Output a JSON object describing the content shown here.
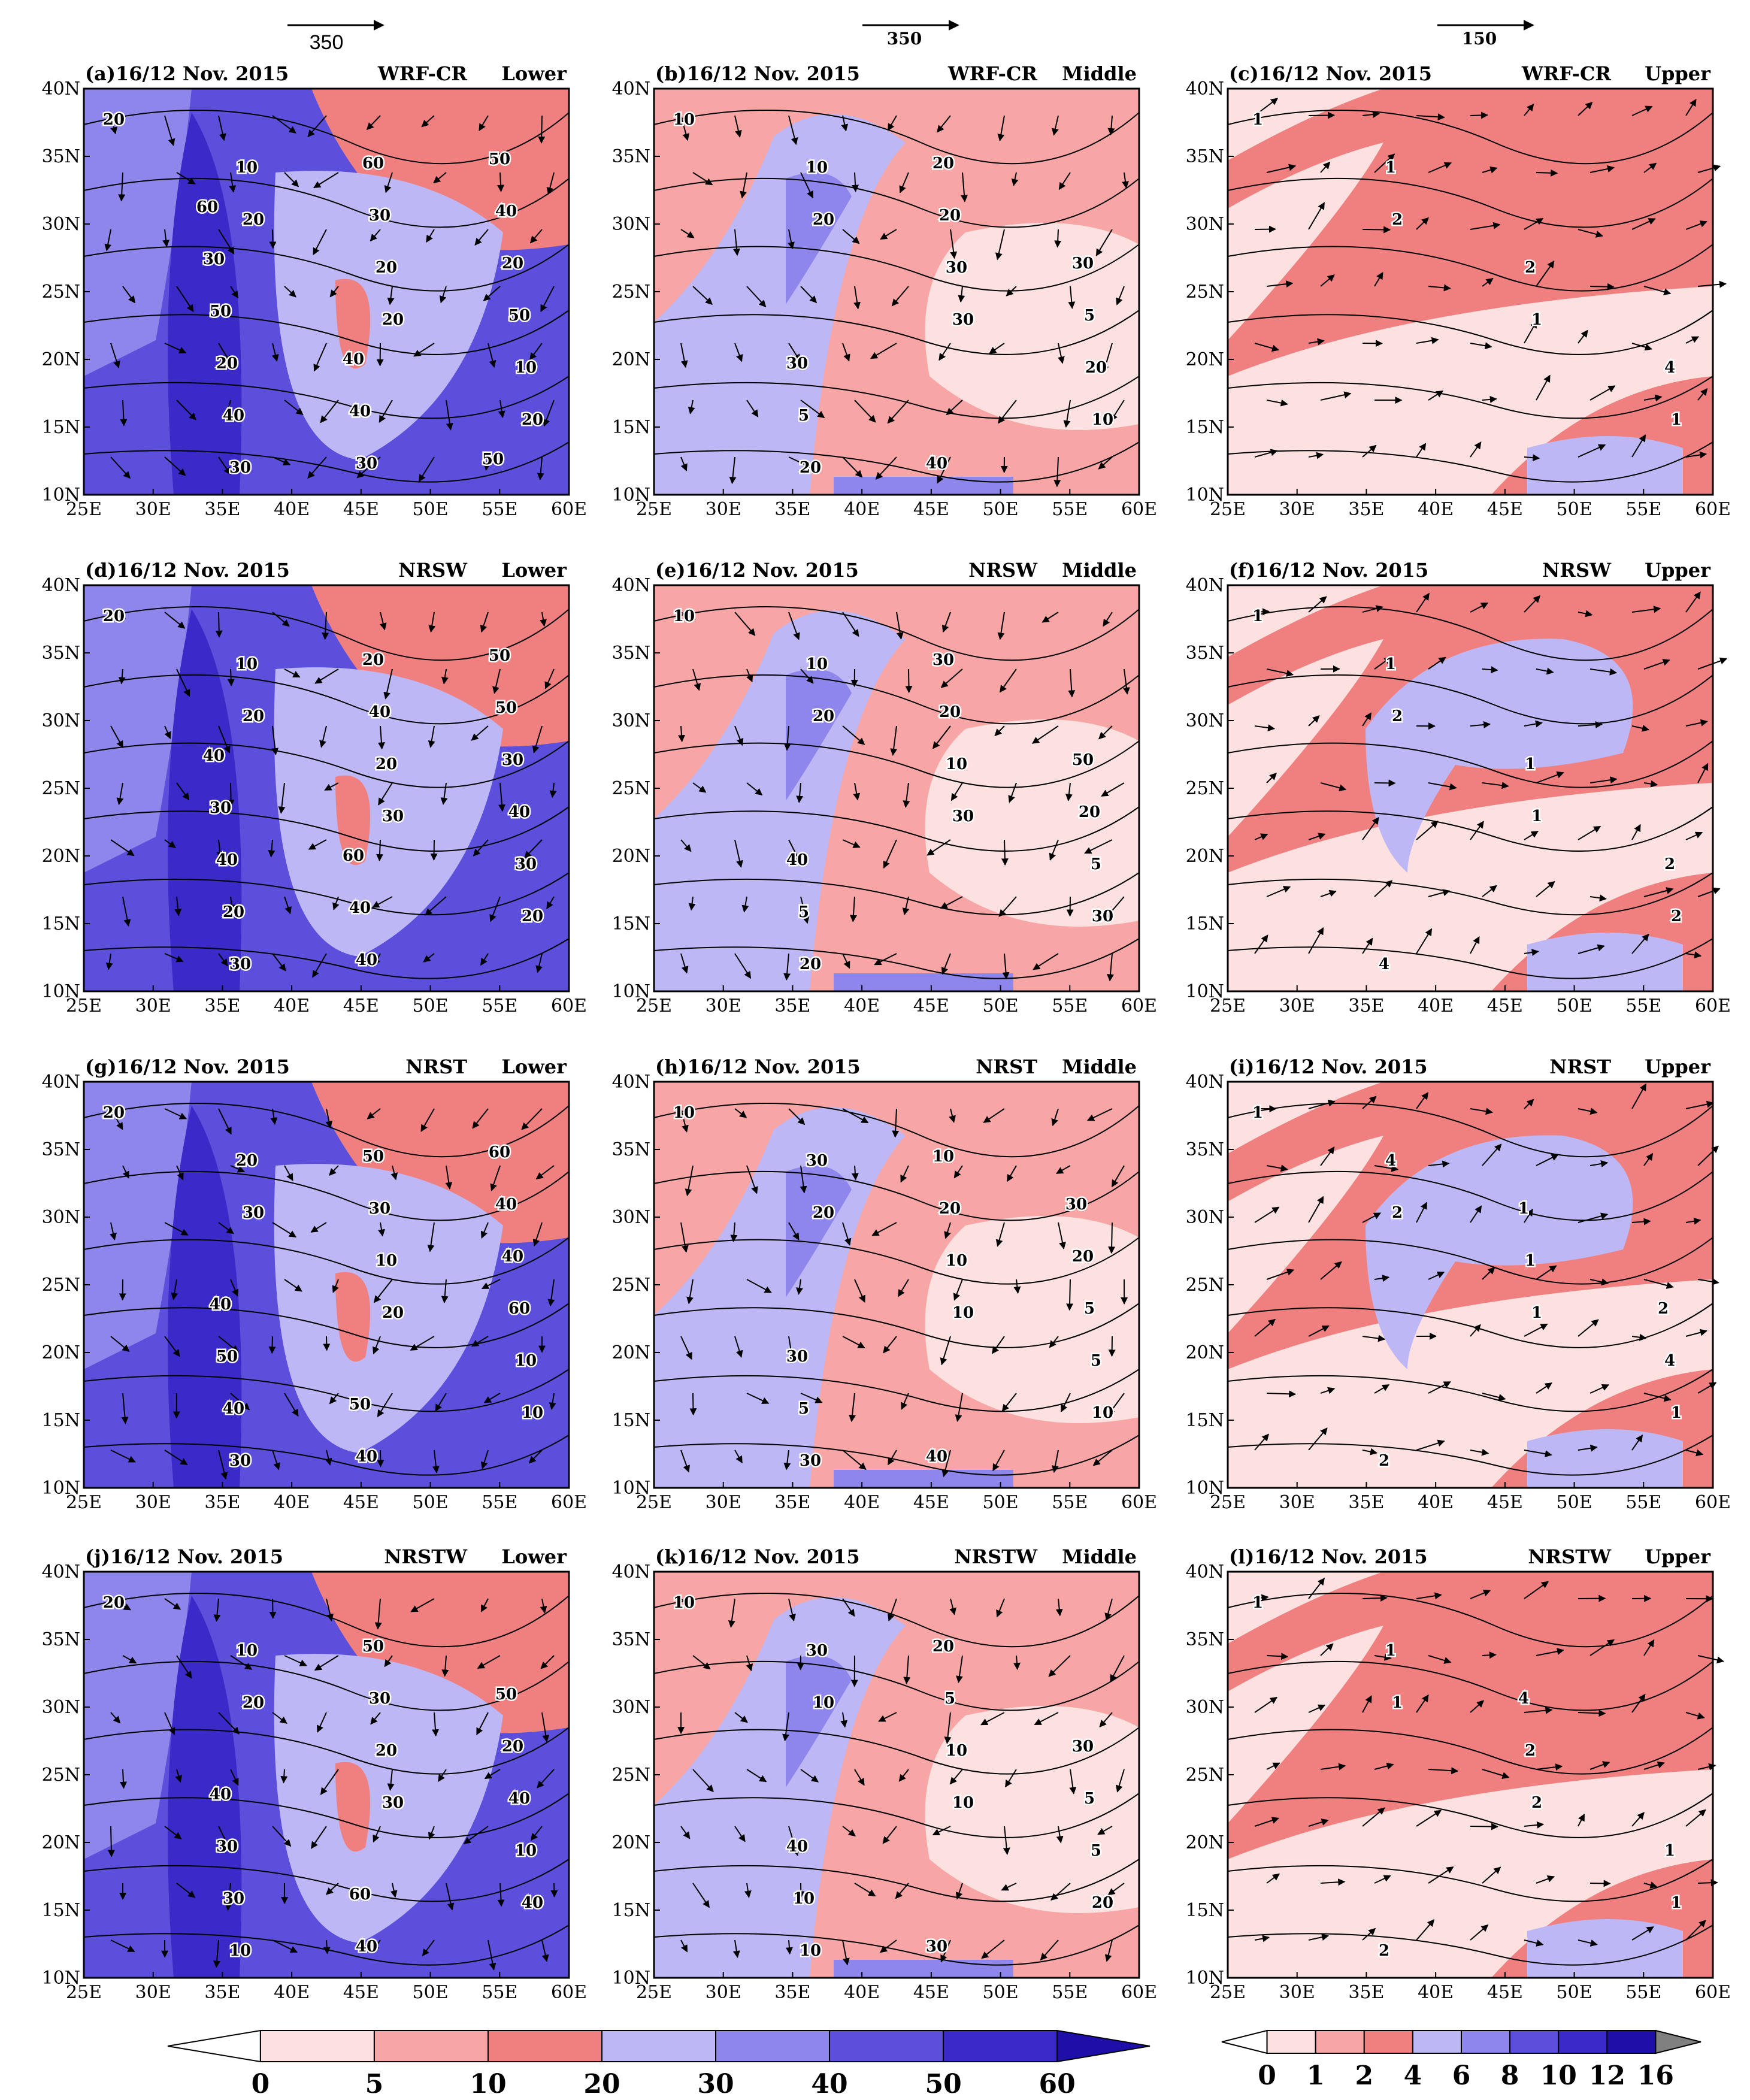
{
  "reference_vectors": [
    {
      "value": "350"
    },
    {
      "value": "350"
    },
    {
      "value": "150"
    }
  ],
  "x_tick_labels": [
    "25E",
    "30E",
    "35E",
    "40E",
    "45E",
    "50E",
    "55E",
    "60E"
  ],
  "y_tick_labels": [
    "40N",
    "35N",
    "30N",
    "25N",
    "20N",
    "15N",
    "10N"
  ],
  "panels": [
    {
      "id": "a",
      "title": "(a)16/12 Nov. 2015",
      "model": "WRF-CR",
      "level": "Lower",
      "scale": "low",
      "contour_labels": [
        "20",
        "20",
        "20",
        "20",
        "10",
        "20",
        "10",
        "30",
        "30",
        "50",
        "40",
        "60",
        "20",
        "20",
        "30",
        "40",
        "50",
        "40",
        "50",
        "30",
        "40",
        "50",
        "60"
      ]
    },
    {
      "id": "b",
      "title": "(b)16/12 Nov. 2015",
      "model": "WRF-CR",
      "level": "Middle",
      "scale": "low",
      "contour_labels": [
        "10",
        "20",
        "30",
        "10",
        "10",
        "30",
        "20",
        "20",
        "20",
        "5",
        "5",
        "20",
        "30",
        "30",
        "40"
      ]
    },
    {
      "id": "c",
      "title": "(c)16/12 Nov. 2015",
      "model": "WRF-CR",
      "level": "Upper",
      "scale": "up",
      "contour_labels": [
        "1",
        "2",
        "1",
        "1",
        "1",
        "2",
        "4"
      ]
    },
    {
      "id": "d",
      "title": "(d)16/12 Nov. 2015",
      "model": "NRSW",
      "level": "Lower",
      "scale": "low",
      "contour_labels": [
        "20",
        "20",
        "30",
        "20",
        "10",
        "20",
        "30",
        "30",
        "40",
        "40",
        "20",
        "20",
        "30",
        "40",
        "40",
        "50",
        "30",
        "40",
        "50",
        "40",
        "60"
      ]
    },
    {
      "id": "e",
      "title": "(e)16/12 Nov. 2015",
      "model": "NRSW",
      "level": "Middle",
      "scale": "low",
      "contour_labels": [
        "10",
        "20",
        "30",
        "30",
        "10",
        "10",
        "5",
        "20",
        "20",
        "20",
        "5",
        "30",
        "50",
        "40"
      ]
    },
    {
      "id": "f",
      "title": "(f)16/12 Nov. 2015",
      "model": "NRSW",
      "level": "Upper",
      "scale": "up",
      "contour_labels": [
        "1",
        "2",
        "1",
        "2",
        "1",
        "1",
        "2",
        "4"
      ]
    },
    {
      "id": "g",
      "title": "(g)16/12 Nov. 2015",
      "model": "NRST",
      "level": "Lower",
      "scale": "low",
      "contour_labels": [
        "20",
        "30",
        "20",
        "10",
        "20",
        "10",
        "10",
        "30",
        "30",
        "60",
        "40",
        "50",
        "40",
        "50",
        "40",
        "40",
        "40",
        "50",
        "60"
      ]
    },
    {
      "id": "h",
      "title": "(h)16/12 Nov. 2015",
      "model": "NRST",
      "level": "Middle",
      "scale": "low",
      "contour_labels": [
        "10",
        "20",
        "10",
        "10",
        "30",
        "10",
        "5",
        "30",
        "20",
        "5",
        "5",
        "10",
        "20",
        "30",
        "40",
        "30"
      ]
    },
    {
      "id": "i",
      "title": "(i)16/12 Nov. 2015",
      "model": "NRST",
      "level": "Upper",
      "scale": "up",
      "contour_labels": [
        "1",
        "2",
        "1",
        "1",
        "4",
        "1",
        "4",
        "2",
        "1",
        "2"
      ]
    },
    {
      "id": "j",
      "title": "(j)16/12 Nov. 2015",
      "model": "NRSTW",
      "level": "Lower",
      "scale": "low",
      "contour_labels": [
        "20",
        "20",
        "30",
        "40",
        "10",
        "20",
        "10",
        "10",
        "30",
        "40",
        "30",
        "50",
        "20",
        "30",
        "40",
        "50",
        "40",
        "60"
      ]
    },
    {
      "id": "k",
      "title": "(k)16/12 Nov. 2015",
      "model": "NRSTW",
      "level": "Middle",
      "scale": "low",
      "contour_labels": [
        "10",
        "10",
        "10",
        "20",
        "30",
        "10",
        "5",
        "10",
        "5",
        "5",
        "10",
        "20",
        "30",
        "40",
        "30"
      ]
    },
    {
      "id": "l",
      "title": "(l)16/12 Nov. 2015",
      "model": "NRSTW",
      "level": "Upper",
      "scale": "up",
      "contour_labels": [
        "1",
        "1",
        "2",
        "1",
        "1",
        "2",
        "1",
        "2",
        "4"
      ]
    }
  ],
  "colorbar_left": {
    "labels": [
      "0",
      "5",
      "10",
      "20",
      "30",
      "40",
      "50",
      "60"
    ],
    "colors": [
      "#ffffff",
      "#fde1e1",
      "#f7a5a5",
      "#f08080",
      "#bdb8f5",
      "#8f86ec",
      "#5c4fdc",
      "#3a2ac8",
      "#1d0fa8"
    ]
  },
  "colorbar_right": {
    "labels": [
      "0",
      "1",
      "2",
      "4",
      "6",
      "8",
      "10",
      "12",
      "16"
    ],
    "colors": [
      "#ffffff",
      "#fde1e1",
      "#f7a5a5",
      "#f08080",
      "#bdb8f5",
      "#8f86ec",
      "#5c4fdc",
      "#3a2ac8",
      "#1d0fa8",
      "#808080"
    ]
  }
}
